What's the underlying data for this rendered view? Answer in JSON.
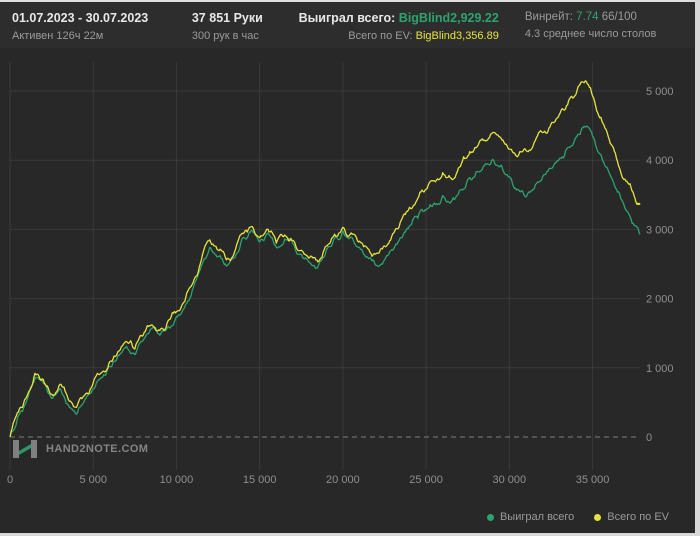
{
  "header": {
    "date_range": "01.07.2023 - 30.07.2023",
    "active_time": "Активен 126ч 22м",
    "hands": "37 851 Руки",
    "hands_per_hour": "300 рук в час",
    "won_label": "Выиграл всего:",
    "won_value": "BigBlind2,929.22",
    "ev_label": "Всего по EV:",
    "ev_value": "BigBlind3,356.89",
    "winrate_label": "Винрейт:",
    "winrate_value": "7.74",
    "winrate_extra": "66/100",
    "avg_tables": "4.3 среднее число столов"
  },
  "watermark": {
    "text": "HAND2NOTE.COM"
  },
  "legend": [
    {
      "label": "Выиграл всего",
      "color": "#2ca46e"
    },
    {
      "label": "Всего по EV",
      "color": "#e6e43c"
    }
  ],
  "colors": {
    "accent_green": "#2ca46e",
    "accent_yellow": "#e6e43c",
    "background": "#2a2a2a",
    "grid": "#3a3a3a",
    "zero_line": "#7d7d7d",
    "text_muted": "#9a9a9a"
  },
  "chart_data": {
    "type": "line",
    "title": "",
    "xlabel": "",
    "ylabel": "",
    "xlim": [
      0,
      37851
    ],
    "ylim": [
      -200,
      5400
    ],
    "x_step": 500,
    "grid": true,
    "legend_position": "bottom-right",
    "x_ticks": [
      {
        "v": 0,
        "label": "0"
      },
      {
        "v": 5000,
        "label": "5 000"
      },
      {
        "v": 10000,
        "label": "10 000"
      },
      {
        "v": 15000,
        "label": "15 000"
      },
      {
        "v": 20000,
        "label": "20 000"
      },
      {
        "v": 25000,
        "label": "25 000"
      },
      {
        "v": 30000,
        "label": "30 000"
      },
      {
        "v": 35000,
        "label": "35 000"
      }
    ],
    "y_ticks": [
      {
        "v": 0,
        "label": "0"
      },
      {
        "v": 1000,
        "label": "1 000"
      },
      {
        "v": 2000,
        "label": "2 000"
      },
      {
        "v": 3000,
        "label": "3 000"
      },
      {
        "v": 4000,
        "label": "4 000"
      },
      {
        "v": 5000,
        "label": "5 000"
      }
    ],
    "series": [
      {
        "name": "Выиграл всего",
        "color": "#2ca46e",
        "final_value": 2929.22,
        "values": [
          0,
          310,
          520,
          840,
          780,
          560,
          700,
          460,
          330,
          540,
          700,
          860,
          1020,
          1180,
          1310,
          1190,
          1400,
          1560,
          1470,
          1600,
          1740,
          1880,
          2150,
          2480,
          2740,
          2610,
          2470,
          2590,
          2880,
          2990,
          2820,
          2950,
          2740,
          2860,
          2790,
          2640,
          2520,
          2460,
          2700,
          2870,
          2980,
          2890,
          2740,
          2590,
          2480,
          2560,
          2700,
          2880,
          3050,
          3160,
          3280,
          3380,
          3490,
          3400,
          3560,
          3720,
          3830,
          3920,
          4010,
          3930,
          3760,
          3580,
          3470,
          3590,
          3760,
          3880,
          4020,
          4180,
          4330,
          4490,
          4350,
          4080,
          3820,
          3540,
          3280,
          3060,
          2929.22
        ]
      },
      {
        "name": "Всего по EV",
        "color": "#e6e43c",
        "final_value": 3356.89,
        "values": [
          0,
          360,
          580,
          920,
          830,
          620,
          760,
          540,
          430,
          610,
          780,
          930,
          1090,
          1240,
          1380,
          1270,
          1470,
          1620,
          1540,
          1680,
          1810,
          1960,
          2230,
          2560,
          2850,
          2700,
          2560,
          2680,
          2940,
          3040,
          2880,
          3000,
          2800,
          2920,
          2840,
          2700,
          2590,
          2530,
          2760,
          2930,
          3030,
          2950,
          2830,
          2720,
          2650,
          2760,
          2940,
          3130,
          3320,
          3450,
          3580,
          3700,
          3820,
          3740,
          3900,
          4060,
          4180,
          4290,
          4400,
          4320,
          4160,
          4050,
          4140,
          4260,
          4400,
          4520,
          4660,
          4800,
          4950,
          5120,
          4930,
          4620,
          4300,
          3980,
          3700,
          3480,
          3356.89
        ]
      }
    ]
  }
}
